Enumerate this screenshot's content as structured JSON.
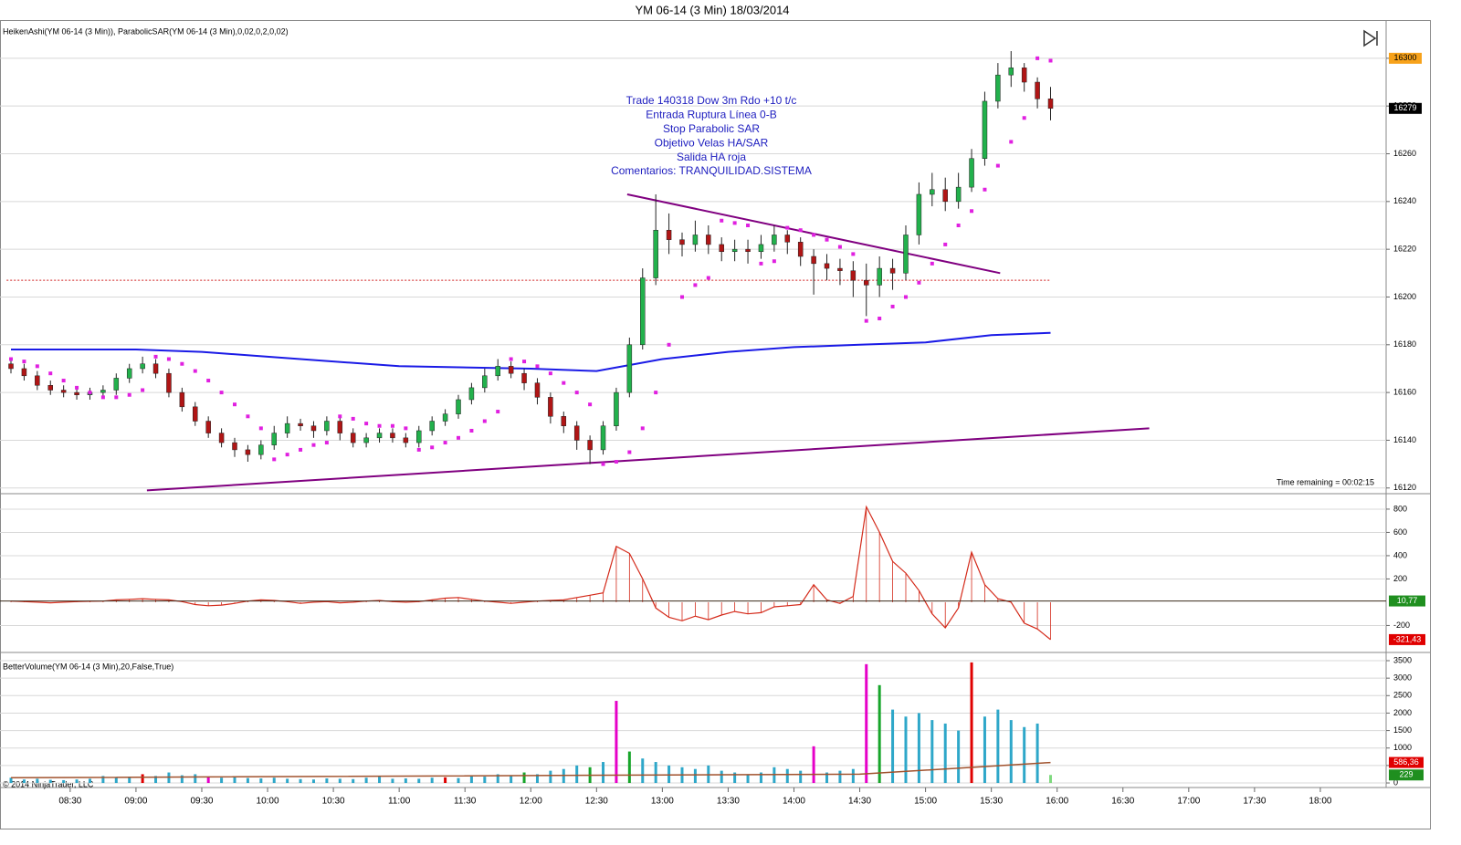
{
  "window_title": "YM 06-14 (3 Min)  18/03/2014",
  "chart_data": {
    "type": "candlestick",
    "panel_label": "HeikenAshi(YM 06-14 (3 Min)), ParabolicSAR(YM 06-14 (3 Min),0,02,0,2,0,02)",
    "x": [
      "08:03",
      "08:09",
      "08:15",
      "08:21",
      "08:27",
      "08:33",
      "08:39",
      "08:45",
      "08:51",
      "08:57",
      "09:03",
      "09:09",
      "09:15",
      "09:21",
      "09:27",
      "09:33",
      "09:39",
      "09:45",
      "09:51",
      "09:57",
      "10:03",
      "10:09",
      "10:15",
      "10:21",
      "10:27",
      "10:33",
      "10:39",
      "10:45",
      "10:51",
      "10:57",
      "11:03",
      "11:09",
      "11:15",
      "11:21",
      "11:27",
      "11:33",
      "11:39",
      "11:45",
      "11:51",
      "11:57",
      "12:03",
      "12:09",
      "12:15",
      "12:21",
      "12:27",
      "12:33",
      "12:39",
      "12:45",
      "12:51",
      "12:57",
      "13:03",
      "13:09",
      "13:15",
      "13:21",
      "13:27",
      "13:33",
      "13:39",
      "13:45",
      "13:51",
      "13:57",
      "14:03",
      "14:09",
      "14:15",
      "14:21",
      "14:27",
      "14:33",
      "14:39",
      "14:45",
      "14:51",
      "14:57",
      "15:03",
      "15:09",
      "15:15",
      "15:21",
      "15:27",
      "15:33",
      "15:39",
      "15:45",
      "15:51",
      "15:57"
    ],
    "xlim": [
      "07:58",
      "18:30"
    ],
    "xticks": [
      "08:30",
      "09:00",
      "09:30",
      "10:00",
      "10:30",
      "11:00",
      "11:30",
      "12:00",
      "12:30",
      "13:00",
      "13:30",
      "14:00",
      "14:30",
      "15:00",
      "15:30",
      "16:00",
      "16:30",
      "17:00",
      "17:30",
      "18:00"
    ],
    "open": [
      16172,
      16170,
      16167,
      16163,
      16161,
      16160,
      16159,
      16160,
      16161,
      16166,
      16170,
      16172,
      16168,
      16160,
      16154,
      16148,
      16143,
      16139,
      16136,
      16134,
      16138,
      16143,
      16147,
      16146,
      16144,
      16148,
      16143,
      16139,
      16141,
      16143,
      16141,
      16139,
      16144,
      16148,
      16151,
      16157,
      16162,
      16167,
      16171,
      16168,
      16164,
      16158,
      16150,
      16146,
      16140,
      16136,
      16146,
      16160,
      16180,
      16208,
      16228,
      16224,
      16222,
      16226,
      16222,
      16219,
      16220,
      16219,
      16222,
      16226,
      16223,
      16217,
      16214,
      16212,
      16211,
      16207,
      16205,
      16212,
      16210,
      16226,
      16243,
      16245,
      16240,
      16246,
      16258,
      16282,
      16293,
      16296,
      16290,
      16283
    ],
    "high": [
      16174,
      16172,
      16169,
      16165,
      16163,
      16162,
      16162,
      16163,
      16168,
      16172,
      16175,
      16174,
      16170,
      16162,
      16156,
      16150,
      16145,
      16141,
      16138,
      16140,
      16146,
      16150,
      16149,
      16148,
      16150,
      16150,
      16145,
      16143,
      16145,
      16145,
      16143,
      16146,
      16150,
      16153,
      16159,
      16164,
      16170,
      16174,
      16173,
      16170,
      16166,
      16160,
      16152,
      16148,
      16142,
      16148,
      16162,
      16183,
      16212,
      16243,
      16235,
      16227,
      16232,
      16230,
      16225,
      16224,
      16224,
      16226,
      16230,
      16228,
      16225,
      16220,
      16218,
      16216,
      16215,
      16214,
      16217,
      16216,
      16230,
      16248,
      16252,
      16250,
      16252,
      16262,
      16286,
      16298,
      16303,
      16298,
      16292,
      16288
    ],
    "low": [
      16168,
      16165,
      16161,
      16159,
      16158,
      16157,
      16157,
      16158,
      16159,
      16164,
      16168,
      16166,
      16158,
      16152,
      16146,
      16141,
      16137,
      16133,
      16131,
      16132,
      16136,
      16141,
      16144,
      16141,
      16142,
      16140,
      16137,
      16137,
      16139,
      16139,
      16137,
      16137,
      16142,
      16146,
      16149,
      16155,
      16160,
      16165,
      16166,
      16161,
      16155,
      16147,
      16143,
      16136,
      16130,
      16134,
      16144,
      16158,
      16178,
      16205,
      16218,
      16217,
      16219,
      16218,
      16215,
      16215,
      16214,
      16216,
      16219,
      16218,
      16213,
      16201,
      16207,
      16205,
      16200,
      16192,
      16200,
      16203,
      16207,
      16222,
      16238,
      16236,
      16237,
      16244,
      16255,
      16279,
      16288,
      16286,
      16279,
      16274
    ],
    "close": [
      16170,
      16167,
      16163,
      16161,
      16160,
      16159,
      16160,
      16161,
      16166,
      16170,
      16172,
      16168,
      16160,
      16154,
      16148,
      16143,
      16139,
      16136,
      16134,
      16138,
      16143,
      16147,
      16146,
      16144,
      16148,
      16143,
      16139,
      16141,
      16143,
      16141,
      16139,
      16144,
      16148,
      16151,
      16157,
      16162,
      16167,
      16171,
      16168,
      16164,
      16158,
      16150,
      16146,
      16140,
      16136,
      16146,
      16160,
      16180,
      16208,
      16228,
      16224,
      16222,
      16226,
      16222,
      16219,
      16220,
      16219,
      16222,
      16226,
      16223,
      16217,
      16214,
      16212,
      16211,
      16207,
      16205,
      16212,
      16210,
      16226,
      16243,
      16245,
      16240,
      16246,
      16258,
      16282,
      16293,
      16296,
      16290,
      16283,
      16279
    ],
    "up_color": "#22b14c",
    "down_color": "#b01515",
    "ylim": [
      16118,
      16316
    ],
    "yticks": [
      16120,
      16140,
      16160,
      16180,
      16200,
      16220,
      16240,
      16260,
      16280,
      16300
    ],
    "grid": true,
    "sar": {
      "color": "#e020e0",
      "values": [
        16174,
        16173,
        16171,
        16168,
        16165,
        16162,
        16160,
        16158,
        16158,
        16159,
        16161,
        16175,
        16174,
        16172,
        16169,
        16165,
        16160,
        16155,
        16150,
        16145,
        16132,
        16134,
        16136,
        16138,
        16139,
        16150,
        16149,
        16147,
        16146,
        16146,
        16145,
        16136,
        16137,
        16139,
        16141,
        16144,
        16148,
        16152,
        16174,
        16173,
        16171,
        16168,
        16164,
        16160,
        16155,
        16130,
        16131,
        16135,
        16145,
        16160,
        16180,
        16200,
        16205,
        16208,
        16232,
        16231,
        16230,
        16214,
        16215,
        16229,
        16228,
        16226,
        16224,
        16221,
        16218,
        16190,
        16191,
        16196,
        16200,
        16206,
        16214,
        16222,
        16230,
        16236,
        16245,
        16255,
        16265,
        16275,
        16300,
        16299
      ]
    },
    "moving_average": {
      "color": "#1a1ae6",
      "x": [
        "08:03",
        "09:00",
        "09:30",
        "10:00",
        "11:00",
        "12:00",
        "12:30",
        "13:00",
        "13:30",
        "14:00",
        "14:30",
        "15:00",
        "15:30",
        "15:57"
      ],
      "values": [
        16178,
        16178,
        16177,
        16175,
        16171,
        16170,
        16169,
        16174,
        16177,
        16179,
        16180,
        16181,
        16184,
        16185
      ]
    },
    "trendlines": [
      {
        "color": "#800080",
        "x": [
          "12:44",
          "15:34"
        ],
        "values": [
          16243,
          16210
        ]
      },
      {
        "color": "#800080",
        "x": [
          "09:05",
          "16:42"
        ],
        "values": [
          16119,
          16145
        ]
      }
    ],
    "level": {
      "color": "#d02020",
      "x": [
        "08:01",
        "15:57"
      ],
      "value": 16207
    },
    "annotation": [
      "Trade 140318 Dow 3m Rdo +10 t/c",
      "Entrada Ruptura Línea 0-B",
      "Stop Parabolic SAR",
      "Objetivo Velas HA/SAR",
      "Salida HA roja",
      "Comentarios: TRANQUILIDAD.SISTEMA"
    ],
    "price_labels": [
      {
        "value": 16300,
        "color": "#f7a21b"
      },
      {
        "value": 16279,
        "color": "#000000"
      }
    ],
    "time_remaining": "Time remaining = 00:02:15",
    "copyright": "© 2014 NinjaTrader, LLC",
    "oscillator": {
      "color": "#d42a1a",
      "ylim": [
        -424,
        925
      ],
      "yticks": [
        -200,
        200,
        400,
        600,
        800
      ],
      "values": [
        10,
        5,
        0,
        -5,
        0,
        5,
        8,
        10,
        20,
        25,
        30,
        25,
        20,
        5,
        -20,
        -30,
        -25,
        -10,
        10,
        20,
        15,
        5,
        -10,
        0,
        5,
        -5,
        0,
        10,
        15,
        5,
        0,
        5,
        20,
        35,
        40,
        25,
        10,
        0,
        -10,
        0,
        10,
        15,
        20,
        40,
        60,
        80,
        480,
        420,
        200,
        -50,
        -130,
        -160,
        -120,
        -150,
        -110,
        -80,
        -100,
        -90,
        -40,
        -30,
        -20,
        150,
        20,
        -10,
        50,
        820,
        600,
        350,
        250,
        100,
        -100,
        -220,
        -50,
        430,
        150,
        30,
        0,
        -180,
        -230,
        -321.43
      ],
      "labels": [
        {
          "value": 10.77,
          "label": "10,77",
          "color": "#1f8f1f"
        },
        {
          "value": -321.43,
          "label": "-321,43",
          "color": "#e00000"
        }
      ]
    },
    "volume": {
      "panel_label": "BetterVolume(YM 06-14 (3 Min),20,False,True)",
      "ylim": [
        -104,
        3709
      ],
      "yticks": [
        0,
        500,
        1000,
        1500,
        2000,
        2500,
        3000,
        3500
      ],
      "values": [
        150,
        100,
        120,
        90,
        80,
        100,
        120,
        200,
        150,
        180,
        250,
        200,
        300,
        220,
        250,
        180,
        150,
        160,
        140,
        130,
        150,
        120,
        110,
        100,
        130,
        120,
        110,
        150,
        180,
        120,
        130,
        120,
        150,
        160,
        140,
        200,
        180,
        250,
        220,
        300,
        250,
        350,
        400,
        500,
        450,
        600,
        2350,
        900,
        700,
        600,
        500,
        450,
        400,
        500,
        350,
        300,
        250,
        300,
        450,
        400,
        350,
        1050,
        300,
        350,
        400,
        3400,
        2800,
        2100,
        1900,
        2000,
        1800,
        1700,
        1500,
        3450,
        1900,
        2100,
        1800,
        1600,
        1700,
        229
      ],
      "colors": [
        "#2ea7c9",
        "#2ea7c9",
        "#2ea7c9",
        "#2ea7c9",
        "#2ea7c9",
        "#2ea7c9",
        "#2ea7c9",
        "#2ea7c9",
        "#2ea7c9",
        "#2ea7c9",
        "#e00000",
        "#2ea7c9",
        "#2ea7c9",
        "#2ea7c9",
        "#2ea7c9",
        "#e600c8",
        "#2ea7c9",
        "#2ea7c9",
        "#2ea7c9",
        "#2ea7c9",
        "#2ea7c9",
        "#2ea7c9",
        "#2ea7c9",
        "#2ea7c9",
        "#2ea7c9",
        "#2ea7c9",
        "#2ea7c9",
        "#2ea7c9",
        "#2ea7c9",
        "#2ea7c9",
        "#2ea7c9",
        "#2ea7c9",
        "#2ea7c9",
        "#e00000",
        "#2ea7c9",
        "#2ea7c9",
        "#2ea7c9",
        "#2ea7c9",
        "#2ea7c9",
        "#17a52a",
        "#2ea7c9",
        "#2ea7c9",
        "#2ea7c9",
        "#2ea7c9",
        "#17a52a",
        "#2ea7c9",
        "#e600c8",
        "#17a52a",
        "#2ea7c9",
        "#2ea7c9",
        "#2ea7c9",
        "#2ea7c9",
        "#2ea7c9",
        "#2ea7c9",
        "#2ea7c9",
        "#2ea7c9",
        "#2ea7c9",
        "#2ea7c9",
        "#2ea7c9",
        "#2ea7c9",
        "#2ea7c9",
        "#e600c8",
        "#2ea7c9",
        "#2ea7c9",
        "#2ea7c9",
        "#e600c8",
        "#17a52a",
        "#2ea7c9",
        "#2ea7c9",
        "#2ea7c9",
        "#2ea7c9",
        "#2ea7c9",
        "#2ea7c9",
        "#e00000",
        "#2ea7c9",
        "#2ea7c9",
        "#2ea7c9",
        "#2ea7c9",
        "#2ea7c9",
        "#7fd97f"
      ],
      "average": {
        "color": "#a0522d",
        "x": [
          "08:03",
          "14:30",
          "15:57"
        ],
        "values": [
          150,
          250,
          586.36
        ]
      },
      "labels": [
        {
          "value": 586.36,
          "label": "586,36",
          "color": "#e00000"
        },
        {
          "value": 229,
          "color": "#1f8f1f"
        }
      ]
    }
  }
}
